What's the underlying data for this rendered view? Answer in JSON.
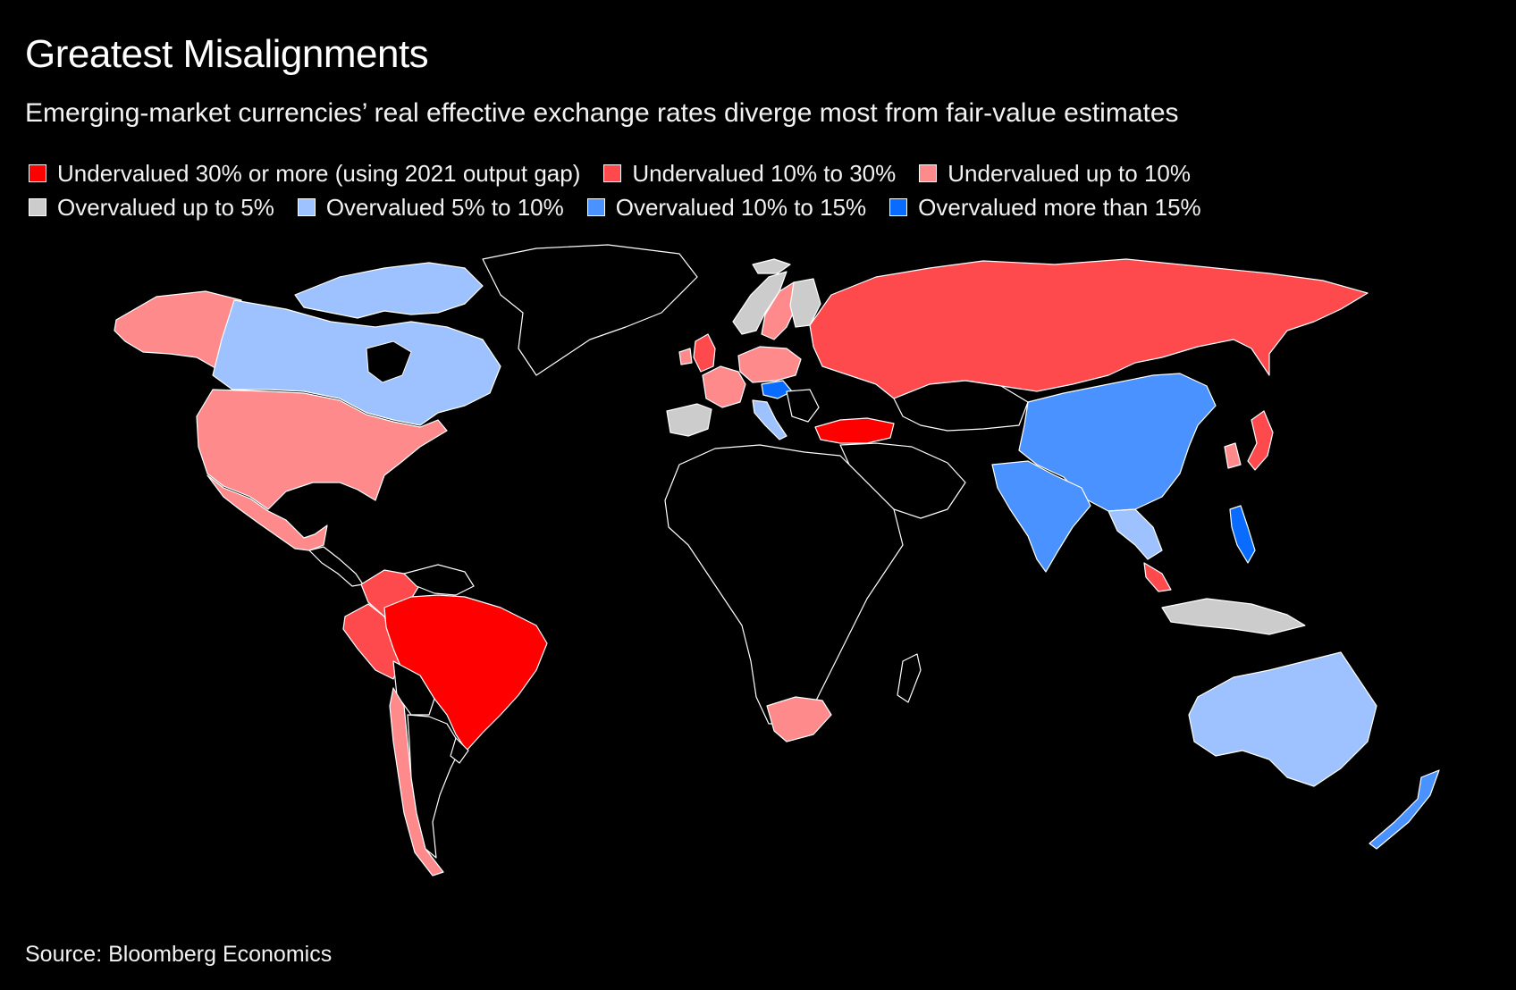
{
  "title": "Greatest Misalignments",
  "subtitle": "Emerging-market currencies’ real effective exchange rates diverge most from fair-value estimates",
  "legend": [
    {
      "label": "Undervalued 30% or more (using 2021 output gap)",
      "color": "#ff0000"
    },
    {
      "label": "Undervalued 10% to 30%",
      "color": "#ff4a4d"
    },
    {
      "label": "Undervalued up to 10%",
      "color": "#ff8a8c"
    },
    {
      "label": "Overvalued up to 5%",
      "color": "#cccccc"
    },
    {
      "label": "Overvalued 5% to 10%",
      "color": "#9dc2ff"
    },
    {
      "label": "Overvalued 10% to 15%",
      "color": "#4a92ff"
    },
    {
      "label": "Overvalued more than 15%",
      "color": "#0a6cff"
    }
  ],
  "colors": {
    "background": "#000000",
    "land_no_data": "#000000",
    "border": "#ffffff"
  },
  "source": "Source: Bloomberg Economics"
}
